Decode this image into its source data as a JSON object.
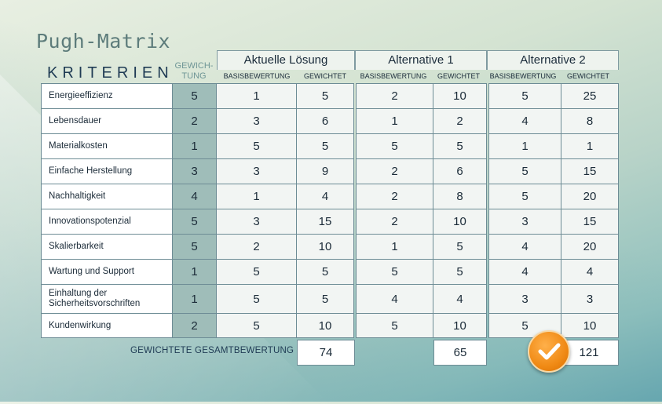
{
  "title": "Pugh-Matrix",
  "criteria_header": "KRITERIEN",
  "weight_header": "GEWICH-\nTUNG",
  "groups": [
    {
      "name": "Aktuelle Lösung",
      "sub": [
        "BASISBEWERTUNG",
        "GEWICHTET"
      ]
    },
    {
      "name": "Alternative 1",
      "sub": [
        "BASISBEWERTUNG",
        "GEWICHTET"
      ]
    },
    {
      "name": "Alternative 2",
      "sub": [
        "BASISBEWERTUNG",
        "GEWICHTET"
      ]
    }
  ],
  "rows": [
    {
      "criterion": "Energieeffizienz",
      "weight": "5",
      "values": [
        "1",
        "5",
        "2",
        "10",
        "5",
        "25"
      ]
    },
    {
      "criterion": "Lebensdauer",
      "weight": "2",
      "values": [
        "3",
        "6",
        "1",
        "2",
        "4",
        "8"
      ]
    },
    {
      "criterion": "Materialkosten",
      "weight": "1",
      "values": [
        "5",
        "5",
        "5",
        "5",
        "1",
        "1"
      ]
    },
    {
      "criterion": "Einfache Herstellung",
      "weight": "3",
      "values": [
        "3",
        "9",
        "2",
        "6",
        "5",
        "15"
      ]
    },
    {
      "criterion": "Nachhaltigkeit",
      "weight": "4",
      "values": [
        "1",
        "4",
        "2",
        "8",
        "5",
        "20"
      ]
    },
    {
      "criterion": "Innovationspotenzial",
      "weight": "5",
      "values": [
        "3",
        "15",
        "2",
        "10",
        "3",
        "15"
      ]
    },
    {
      "criterion": "Skalierbarkeit",
      "weight": "5",
      "values": [
        "2",
        "10",
        "1",
        "5",
        "4",
        "20"
      ]
    },
    {
      "criterion": "Wartung und Support",
      "weight": "1",
      "values": [
        "5",
        "5",
        "5",
        "5",
        "4",
        "4"
      ]
    },
    {
      "criterion": "Einhaltung der Sicherheitsvorschriften",
      "weight": "1",
      "values": [
        "5",
        "5",
        "4",
        "4",
        "3",
        "3"
      ]
    },
    {
      "criterion": "Kundenwirkung",
      "weight": "2",
      "values": [
        "5",
        "10",
        "5",
        "10",
        "5",
        "10"
      ]
    }
  ],
  "total_label": "GEWICHTETE GESAMTBEWERTUNG",
  "totals": [
    "74",
    "65",
    "121"
  ],
  "winner_icon": "check-icon",
  "colors": {
    "accent": "#f08a15",
    "weight_column": "#9fbdb9",
    "text": "#1b2b38"
  }
}
